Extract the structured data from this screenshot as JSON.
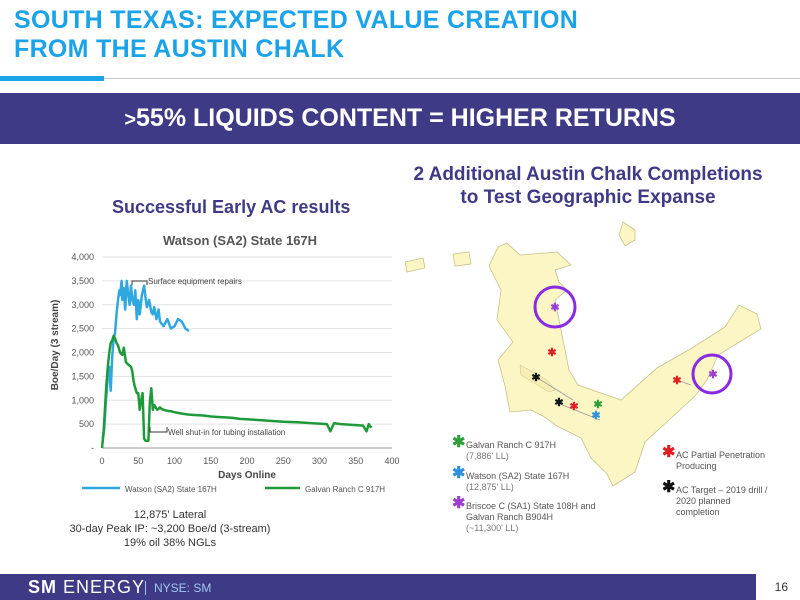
{
  "page": {
    "title_line1": "SOUTH TEXAS: EXPECTED VALUE CREATION",
    "title_line2": "FROM THE AUSTIN CHALK",
    "banner_prefix": ">",
    "banner_text": "55% LIQUIDS CONTENT = HIGHER RETURNS",
    "left_heading": "Successful Early AC results",
    "right_heading_line1": "2 Additional Austin Chalk Completions",
    "right_heading_line2": "to Test Geographic Expanse",
    "notes": [
      "12,875' Lateral",
      "30-day Peak IP: ~3,200 Boe/d  (3-stream)",
      "19% oil 38% NGLs"
    ],
    "footer": {
      "logo_sm": "SM",
      "logo_energy": " ENERGY",
      "ticker": "NYSE: SM",
      "page_number": "16"
    }
  },
  "map_legend": [
    {
      "name": "galvan",
      "star": "✱",
      "color": "#2e9e3a",
      "label": "Galvan Ranch C 917H",
      "sub": "(7,886' LL)"
    },
    {
      "name": "watson",
      "star": "✱",
      "color": "#2f8fe0",
      "label": "Watson (SA2) State 167H",
      "sub": "(12,875' LL)"
    },
    {
      "name": "briscoe",
      "star": "✱",
      "color": "#9b3fd0",
      "label": "Briscoe C (SA1) State 108H and Galvan Ranch B904H",
      "sub": "(~11,300' LL)"
    },
    {
      "name": "ac-partial",
      "star": "✱",
      "color": "#e02020",
      "label": "AC Partial Penetration Producing",
      "sub": ""
    },
    {
      "name": "ac-target",
      "star": "✱",
      "color": "#111111",
      "label": "AC Target – 2019 drill / 2020 planned completion",
      "sub": ""
    }
  ],
  "colors": {
    "title": "#1aa3e8",
    "banner": "#3f3a85",
    "watson": "#2fa8e0",
    "galvan": "#1f9a3a"
  },
  "chart_data": {
    "type": "line",
    "title": "Watson (SA2) State 167H",
    "xlabel": "Days Online",
    "ylabel": "Boe/Day (3 stream)",
    "xlim": [
      0,
      400
    ],
    "ylim": [
      0,
      4000
    ],
    "xticks": [
      0,
      50,
      100,
      150,
      200,
      250,
      300,
      350,
      400
    ],
    "yticks": [
      0,
      500,
      1000,
      1500,
      2000,
      2500,
      3000,
      3500,
      4000
    ],
    "ytick_labels": [
      "-",
      "500",
      "1,000",
      "1,500",
      "2,000",
      "2,500",
      "3,000",
      "3,500",
      "4,000"
    ],
    "annotations": [
      {
        "text": "Surface equipment repairs",
        "x": 45,
        "y": 3500
      },
      {
        "text": "Well shut-in for tubing installation",
        "x": 95,
        "y": 280
      }
    ],
    "legend_position": "bottom",
    "series": [
      {
        "name": "Watson (SA2) State 167H",
        "color": "#2fa8e0",
        "x": [
          1,
          3,
          5,
          8,
          10,
          12,
          14,
          16,
          18,
          20,
          22,
          24,
          25,
          27,
          28,
          30,
          32,
          34,
          36,
          38,
          40,
          42,
          44,
          46,
          48,
          50,
          52,
          55,
          58,
          60,
          62,
          65,
          68,
          70,
          72,
          75,
          78,
          80,
          85,
          90,
          95,
          100,
          105,
          110,
          115,
          120
        ],
        "y": [
          200,
          400,
          900,
          1500,
          1700,
          1200,
          1900,
          2300,
          2400,
          2800,
          3100,
          3300,
          3200,
          3500,
          3100,
          3350,
          2900,
          3500,
          3250,
          3000,
          3400,
          3100,
          3000,
          3300,
          2700,
          3100,
          2800,
          3200,
          3400,
          3150,
          2950,
          3100,
          2850,
          2800,
          2950,
          2700,
          2900,
          2650,
          2550,
          2700,
          2500,
          2550,
          2700,
          2650,
          2500,
          2450
        ]
      },
      {
        "name": "Galvan Ranch C 917H",
        "color": "#1f9a3a",
        "x": [
          0,
          2,
          4,
          6,
          8,
          10,
          12,
          14,
          16,
          18,
          20,
          22,
          25,
          28,
          30,
          33,
          36,
          40,
          42,
          43,
          45,
          48,
          50,
          52,
          54,
          56,
          58,
          60,
          62,
          64,
          66,
          68,
          70,
          72,
          74,
          76,
          78,
          80,
          82,
          85,
          90,
          95,
          100,
          110,
          120,
          130,
          140,
          150,
          160,
          170,
          180,
          190,
          200,
          210,
          220,
          230,
          240,
          250,
          260,
          270,
          280,
          290,
          300,
          310,
          315,
          320,
          330,
          340,
          350,
          360,
          365,
          368,
          370,
          372
        ],
        "y": [
          0,
          300,
          800,
          1300,
          1700,
          2000,
          2200,
          2250,
          2350,
          2300,
          2200,
          2150,
          2000,
          1950,
          2100,
          1800,
          1750,
          1700,
          1600,
          1450,
          1300,
          1150,
          1150,
          800,
          1000,
          1150,
          200,
          150,
          150,
          150,
          950,
          1250,
          800,
          900,
          850,
          800,
          820,
          850,
          820,
          800,
          780,
          770,
          750,
          720,
          700,
          690,
          680,
          660,
          650,
          640,
          630,
          610,
          600,
          590,
          580,
          570,
          560,
          550,
          545,
          540,
          530,
          520,
          510,
          500,
          350,
          520,
          500,
          490,
          480,
          470,
          350,
          500,
          450,
          430
        ]
      }
    ]
  }
}
